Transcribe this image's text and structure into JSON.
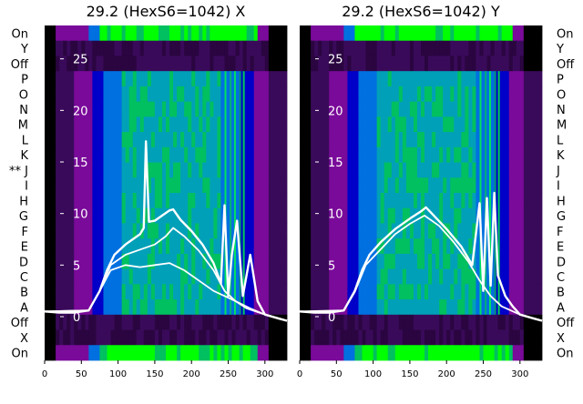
{
  "chart_data": [
    {
      "type": "heatmap",
      "title": "29.2 (HexS6=1042) X",
      "x_range": [
        0,
        330
      ],
      "x_ticks": [
        0,
        50,
        100,
        150,
        200,
        250,
        300
      ],
      "inner_y_range": [
        -3,
        27
      ],
      "inner_y_ticks": [
        0,
        5,
        10,
        15,
        20,
        25
      ],
      "row_labels": [
        "On",
        "Y",
        "Off",
        "P",
        "O",
        "N",
        "M",
        "L",
        "K",
        "** J",
        "I",
        "H",
        "G",
        "F",
        "E",
        "D",
        "C",
        "B",
        "A",
        "Off",
        "X",
        "On"
      ],
      "colormap": [
        "#000000",
        "#3a0a5a",
        "#7a0a9a",
        "#0000c8",
        "#0070e0",
        "#00a0b8",
        "#00c060",
        "#00ff00"
      ],
      "overlay_series": [
        {
          "x": [
            0,
            20,
            40,
            60,
            75,
            85,
            95,
            110,
            120,
            130,
            135,
            138,
            142,
            150,
            160,
            170,
            175,
            185,
            200,
            215,
            230,
            240,
            245,
            250,
            255,
            262,
            270,
            280,
            290,
            300,
            320,
            330
          ],
          "y": [
            0.5,
            0.4,
            0.4,
            0.6,
            2.5,
            4.5,
            6,
            7,
            7.5,
            8,
            8.6,
            17,
            9.2,
            9.3,
            9.8,
            10.3,
            10.4,
            9.4,
            8.3,
            7,
            5.2,
            3.2,
            10.8,
            2,
            6,
            9.3,
            2,
            6,
            1.5,
            0.2,
            -0.2,
            -0.4
          ]
        },
        {
          "x": [
            0,
            60,
            75,
            90,
            110,
            130,
            150,
            165,
            175,
            190,
            210,
            230,
            245,
            260,
            275,
            300,
            330
          ],
          "y": [
            0.5,
            0.6,
            2.5,
            5,
            6,
            6.5,
            7,
            7.8,
            8.6,
            7.8,
            6.4,
            4.5,
            2.5,
            1.5,
            0.8,
            0.2,
            -0.4
          ]
        },
        {
          "x": [
            0,
            60,
            75,
            90,
            110,
            130,
            150,
            170,
            190,
            210,
            230,
            245,
            260,
            280,
            300,
            330
          ],
          "y": [
            0.5,
            0.6,
            2.5,
            4.5,
            5,
            4.8,
            5,
            5.2,
            4.5,
            3.5,
            2.5,
            2,
            1.5,
            0.8,
            0.2,
            -0.4
          ]
        }
      ]
    },
    {
      "type": "heatmap",
      "title": "29.2 (HexS6=1042) Y",
      "x_range": [
        0,
        330
      ],
      "x_ticks": [
        0,
        50,
        100,
        150,
        200,
        250,
        300
      ],
      "inner_y_range": [
        -3,
        27
      ],
      "inner_y_ticks": [
        0,
        5,
        10,
        15,
        20,
        25
      ],
      "row_labels": [
        "On",
        "Y",
        "Off",
        "P",
        "O",
        "N",
        "M",
        "L",
        "K",
        "J",
        "I",
        "H",
        "G",
        "F",
        "E",
        "D",
        "C",
        "B",
        "A",
        "Off",
        "X",
        "On"
      ],
      "colormap": [
        "#000000",
        "#3a0a5a",
        "#7a0a9a",
        "#0000c8",
        "#0070e0",
        "#00a0b8",
        "#00c060",
        "#00ff00"
      ],
      "overlay_series": [
        {
          "x": [
            0,
            20,
            40,
            60,
            75,
            85,
            95,
            110,
            130,
            150,
            165,
            172,
            180,
            200,
            220,
            235,
            245,
            250,
            255,
            260,
            265,
            270,
            280,
            290,
            300,
            320,
            330
          ],
          "y": [
            0.5,
            0.4,
            0.4,
            0.6,
            2.5,
            4.5,
            6,
            7.2,
            8.5,
            9.5,
            10.2,
            10.6,
            10,
            8.5,
            6.8,
            5,
            11,
            2.5,
            11.5,
            3,
            12,
            4,
            2,
            1,
            0.2,
            -0.2,
            -0.4
          ]
        },
        {
          "x": [
            0,
            60,
            75,
            90,
            110,
            130,
            150,
            170,
            190,
            210,
            230,
            245,
            260,
            275,
            300,
            330
          ],
          "y": [
            0.5,
            0.6,
            2.4,
            5,
            6.5,
            8,
            9,
            9.8,
            8.8,
            7.2,
            5.3,
            3.5,
            2,
            1,
            0.2,
            -0.4
          ]
        }
      ]
    }
  ]
}
